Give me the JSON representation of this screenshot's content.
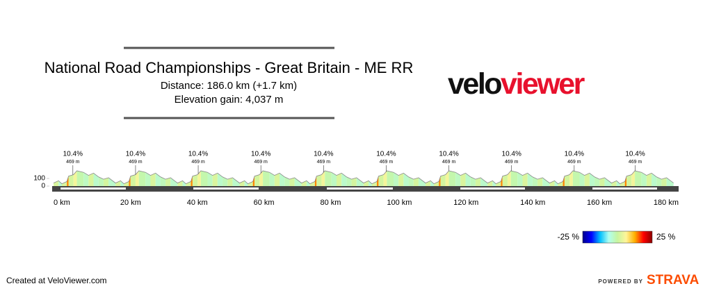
{
  "chart_data": {
    "type": "area",
    "title": "National Road Championships - Great Britain - ME RR",
    "subtitle": [
      "Distance: 186.0 km (+1.7 km)",
      "Elevation gain: 4,037 m"
    ],
    "logo": {
      "first": "velo",
      "second": "viewer"
    },
    "x": [
      0,
      1.5,
      2.5,
      4,
      4.5,
      6,
      7,
      9,
      10.5,
      12,
      13.5,
      15,
      16.5,
      18.6,
      20.1,
      21.1,
      22.6,
      23.1,
      24.6,
      25.6,
      27.6,
      29.1,
      30.6,
      32.1,
      33.6,
      35.1,
      37.2,
      38.7,
      39.7,
      41.2,
      41.7,
      43.2,
      44.2,
      46.2,
      47.7,
      49.2,
      50.7,
      52.2,
      53.7,
      55.8,
      57.3,
      58.3,
      59.8,
      60.3,
      61.8,
      62.8,
      64.8,
      66.3,
      67.8,
      69.3,
      70.8,
      72.3,
      74.4,
      75.9,
      76.9,
      78.4,
      78.9,
      80.4,
      81.4,
      83.4,
      84.9,
      86.4,
      87.9,
      89.4,
      90.9,
      93,
      94.5,
      95.5,
      97,
      97.5,
      99,
      100,
      102,
      103.5,
      105,
      106.5,
      108,
      109.5,
      111.6,
      113.1,
      114.1,
      115.6,
      116.1,
      117.6,
      118.6,
      120.6,
      122.1,
      123.6,
      125.1,
      126.6,
      128.1,
      130.2,
      131.7,
      132.7,
      134.2,
      134.7,
      136.2,
      137.2,
      139.2,
      140.7,
      142.2,
      143.7,
      145.2,
      146.7,
      148.8,
      150.3,
      151.3,
      152.8,
      153.3,
      154.8,
      155.8,
      157.8,
      159.3,
      160.8,
      162.3,
      163.8,
      165.3,
      167.4,
      168.9,
      169.9,
      171.4,
      171.9,
      173.4,
      174.4,
      176.4,
      177.9,
      179.4,
      180.9,
      182.4,
      183.9,
      186
    ],
    "series": [
      {
        "color": "#888888",
        "values": [
          40,
          70,
          30,
          60,
          130,
          150,
          200,
          180,
          140,
          170,
          120,
          90,
          110,
          40,
          70,
          30,
          60,
          130,
          150,
          200,
          180,
          140,
          170,
          120,
          90,
          110,
          40,
          70,
          30,
          60,
          130,
          150,
          200,
          180,
          140,
          170,
          120,
          90,
          110,
          40,
          70,
          30,
          60,
          130,
          150,
          200,
          180,
          140,
          170,
          120,
          90,
          110,
          40,
          70,
          30,
          60,
          130,
          150,
          200,
          180,
          140,
          170,
          120,
          90,
          110,
          40,
          70,
          30,
          60,
          130,
          150,
          200,
          180,
          140,
          170,
          120,
          90,
          110,
          40,
          70,
          30,
          60,
          130,
          150,
          200,
          180,
          140,
          170,
          120,
          90,
          110,
          40,
          70,
          30,
          60,
          130,
          150,
          200,
          180,
          140,
          170,
          120,
          90,
          110,
          40,
          70,
          30,
          60,
          130,
          150,
          200,
          180,
          140,
          170,
          120,
          90,
          110,
          40,
          70,
          30,
          60,
          130,
          150,
          200,
          180,
          140,
          170,
          120,
          90,
          110,
          40
        ]
      }
    ],
    "xlim": [
      0,
      186
    ],
    "ylim": [
      0,
      250
    ],
    "xticks": [
      {
        "value": 0,
        "label": "0 km"
      },
      {
        "value": 20,
        "label": "20 km"
      },
      {
        "value": 40,
        "label": "40 km"
      },
      {
        "value": 60,
        "label": "60 km"
      },
      {
        "value": 80,
        "label": "80 km"
      },
      {
        "value": 100,
        "label": "100 km"
      },
      {
        "value": 120,
        "label": "120 km"
      },
      {
        "value": 140,
        "label": "140 km"
      },
      {
        "value": 160,
        "label": "160 km"
      },
      {
        "value": 180,
        "label": "180 km"
      }
    ],
    "yticks": [
      100,
      0
    ],
    "annotations": [
      {
        "x": 5.8,
        "grade": "10.4%",
        "elevation": "469 m"
      },
      {
        "x": 24.6,
        "grade": "10.4%",
        "elevation": "469 m"
      },
      {
        "x": 43.4,
        "grade": "10.4%",
        "elevation": "469 m"
      },
      {
        "x": 62.2,
        "grade": "10.4%",
        "elevation": "469 m"
      },
      {
        "x": 81.0,
        "grade": "10.4%",
        "elevation": "469 m"
      },
      {
        "x": 99.8,
        "grade": "10.4%",
        "elevation": "469 m"
      },
      {
        "x": 118.6,
        "grade": "10.4%",
        "elevation": "469 m"
      },
      {
        "x": 137.4,
        "grade": "10.4%",
        "elevation": "469 m"
      },
      {
        "x": 156.2,
        "grade": "10.4%",
        "elevation": "469 m"
      },
      {
        "x": 174.5,
        "grade": "10.4%",
        "elevation": "469 m"
      }
    ],
    "color_scale": {
      "min": {
        "value": -25,
        "label": "-25 %"
      },
      "max": {
        "value": 25,
        "label": "25 %"
      },
      "colors": [
        "#00008b",
        "#0000ff",
        "#00bfff",
        "#b0fff0",
        "#c8f5a0",
        "#fff59a",
        "#ffb000",
        "#ff0000",
        "#8b0000"
      ]
    },
    "footer": "Created at VeloViewer.com",
    "powered_by": "POWERED BY",
    "brand": "STRAVA"
  }
}
